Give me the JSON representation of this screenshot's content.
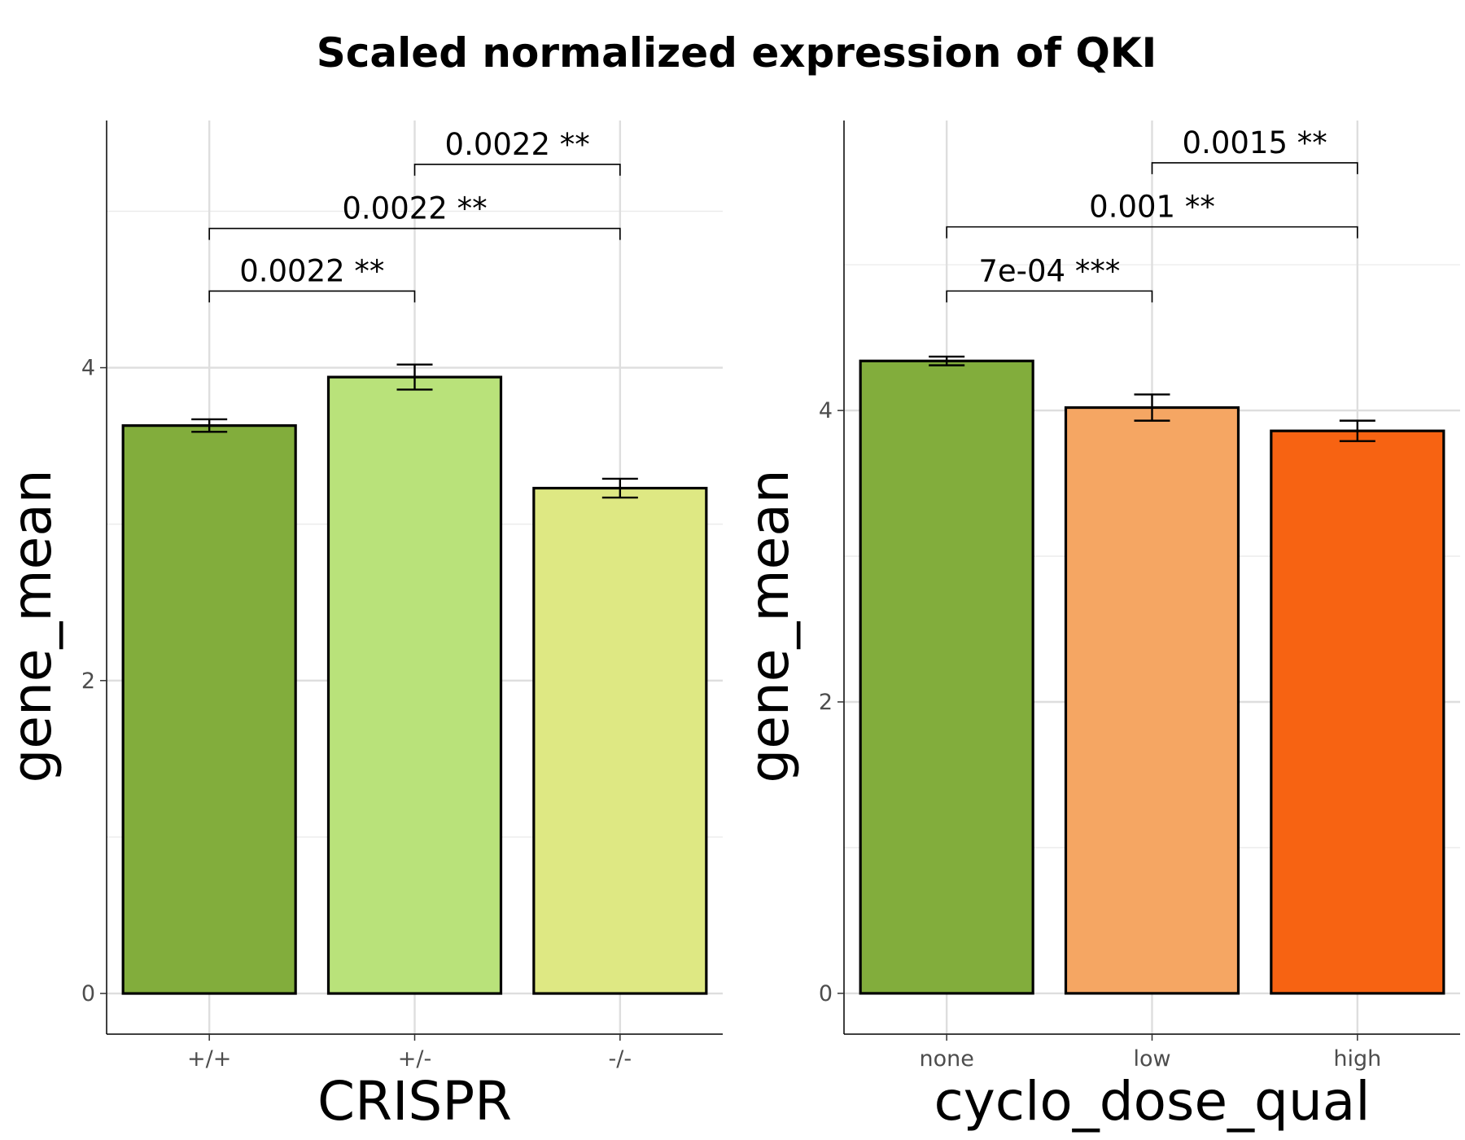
{
  "figure_title": "Scaled normalized expression of QKI",
  "chart_data": [
    {
      "type": "bar",
      "xlabel": "CRISPR",
      "ylabel": "gene_mean",
      "categories": [
        "+/+",
        "+/-",
        "-/-"
      ],
      "values": [
        3.63,
        3.94,
        3.23
      ],
      "error": [
        0.04,
        0.08,
        0.06
      ],
      "colors": [
        "#82ad3c",
        "#b9e27a",
        "#dee883"
      ],
      "ylim": [
        -0.26,
        5.58
      ],
      "y_ticks": [
        0,
        2,
        4
      ],
      "y_minor": [
        1,
        3,
        5
      ],
      "grid": true,
      "comparisons": [
        {
          "from": 0,
          "to": 1,
          "label": "0.0022 **",
          "y": 4.49
        },
        {
          "from": 0,
          "to": 2,
          "label": "0.0022 **",
          "y": 4.89
        },
        {
          "from": 1,
          "to": 2,
          "label": "0.0022 **",
          "y": 5.3
        }
      ]
    },
    {
      "type": "bar",
      "xlabel": "cyclo_dose_qual",
      "ylabel": "gene_mean",
      "categories": [
        "none",
        "low",
        "high"
      ],
      "values": [
        4.34,
        4.02,
        3.86
      ],
      "error": [
        0.03,
        0.09,
        0.07
      ],
      "colors": [
        "#82ad3c",
        "#f5a663",
        "#f76312"
      ],
      "ylim": [
        -0.28,
        5.99
      ],
      "y_ticks": [
        0,
        2,
        4
      ],
      "y_minor": [
        1,
        3,
        5
      ],
      "grid": true,
      "comparisons": [
        {
          "from": 0,
          "to": 1,
          "label": "7e-04 ***",
          "y": 4.82
        },
        {
          "from": 0,
          "to": 2,
          "label": "0.001 **",
          "y": 5.26
        },
        {
          "from": 1,
          "to": 2,
          "label": "0.0015 **",
          "y": 5.7
        }
      ]
    }
  ]
}
